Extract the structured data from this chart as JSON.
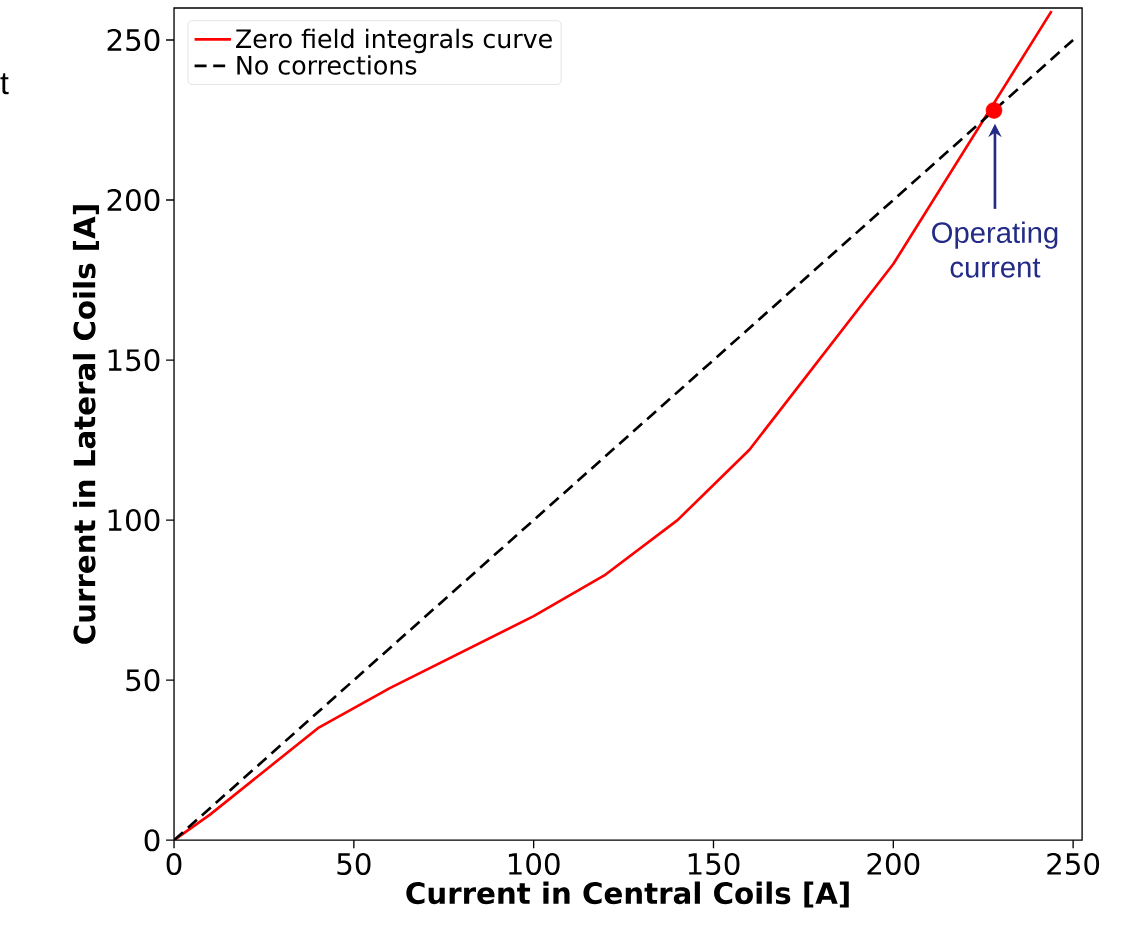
{
  "chart_data": {
    "type": "line",
    "xlabel": "Current in Central Coils [A]",
    "ylabel": "Current in Lateral Coils [A]",
    "xlim": [
      0,
      252.5
    ],
    "ylim": [
      0,
      260
    ],
    "xticks": [
      0,
      50,
      100,
      150,
      200,
      250
    ],
    "yticks": [
      0,
      50,
      100,
      150,
      200,
      250
    ],
    "legend": "top left",
    "grid": false,
    "series": [
      {
        "name": "Zero field integrals curve",
        "color": "#ff0000",
        "line_style": "solid",
        "x": [
          0,
          10,
          40,
          60,
          100,
          120,
          140,
          160,
          180,
          200,
          244
        ],
        "values": [
          0,
          8,
          35,
          47.5,
          70,
          83,
          100,
          122,
          151,
          180,
          259
        ]
      },
      {
        "name": "No corrections",
        "color": "#000000",
        "line_style": "dashed",
        "x": [
          0,
          250
        ],
        "values": [
          0,
          250
        ]
      },
      {
        "type": "scatter",
        "color": "#ff0000",
        "marker": "circle",
        "x": [
          228
        ],
        "values": [
          228
        ]
      }
    ],
    "annotations": [
      "Operating current",
      "t"
    ]
  }
}
